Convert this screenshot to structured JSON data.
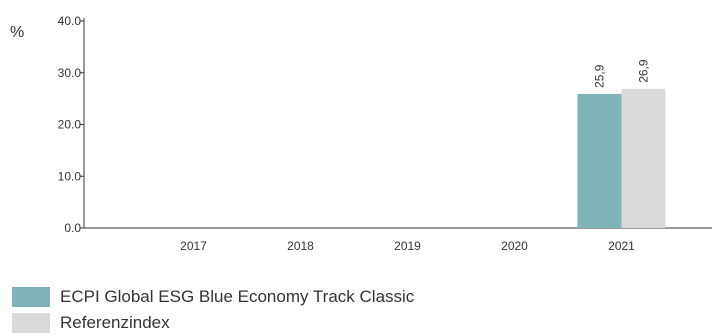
{
  "chart_data": {
    "type": "bar",
    "ylabel": "%",
    "ylim": [
      0,
      40
    ],
    "yticks": [
      "0.0",
      "10.0",
      "20.0",
      "30.0",
      "40.0"
    ],
    "categories": [
      "2017",
      "2018",
      "2019",
      "2020",
      "2021"
    ],
    "series": [
      {
        "name": "ECPI Global ESG Blue Economy Track Classic",
        "color": "#7fb3b8",
        "values": [
          null,
          null,
          null,
          null,
          25.9
        ],
        "labels": [
          "",
          "",
          "",
          "",
          "25,9"
        ]
      },
      {
        "name": "Referenzindex",
        "color": "#d9d9d9",
        "values": [
          null,
          null,
          null,
          null,
          26.9
        ],
        "labels": [
          "",
          "",
          "",
          "",
          "26,9"
        ]
      }
    ],
    "legend_position": "bottom-left"
  }
}
